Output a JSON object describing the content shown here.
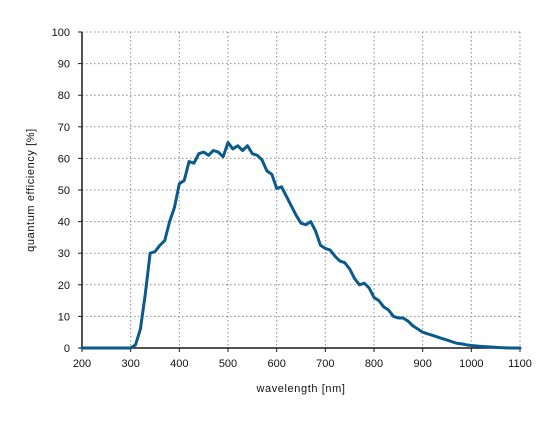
{
  "chart_data": {
    "type": "line",
    "title": "",
    "xlabel": "wavelength [nm]",
    "ylabel": "quantum efficiency [%]",
    "xlim": [
      200,
      1100
    ],
    "ylim": [
      0,
      100
    ],
    "xticks": [
      200,
      300,
      400,
      500,
      600,
      700,
      800,
      900,
      1000,
      1100
    ],
    "yticks": [
      0,
      10,
      20,
      30,
      40,
      50,
      60,
      70,
      80,
      90,
      100
    ],
    "grid": true,
    "legend": "none",
    "line_color": "#0b5a8c",
    "series": [
      {
        "x": [
          200,
          300,
          310,
          320,
          330,
          340,
          350,
          360,
          370,
          380,
          390,
          400,
          410,
          420,
          430,
          440,
          450,
          460,
          470,
          480,
          490,
          500,
          510,
          520,
          530,
          540,
          550,
          560,
          570,
          580,
          590,
          600,
          610,
          620,
          630,
          640,
          650,
          660,
          670,
          680,
          690,
          700,
          710,
          720,
          730,
          740,
          750,
          760,
          770,
          780,
          790,
          800,
          810,
          820,
          830,
          840,
          850,
          860,
          870,
          880,
          890,
          900,
          910,
          920,
          930,
          940,
          950,
          960,
          970,
          980,
          990,
          1000,
          1020,
          1040,
          1060,
          1080,
          1100
        ],
        "values": [
          0,
          0,
          1,
          6,
          17,
          30,
          30.5,
          32.5,
          34,
          40,
          44.5,
          52,
          53,
          59,
          58.5,
          61.5,
          62,
          61,
          62.5,
          62,
          60.5,
          65,
          63,
          64,
          62.5,
          64,
          61.5,
          61,
          59.5,
          56,
          55,
          50.5,
          51,
          48,
          45,
          42,
          39.5,
          39,
          40,
          37,
          32.5,
          31.5,
          31,
          29,
          27.5,
          27,
          25,
          22,
          20,
          20.5,
          19,
          16,
          15,
          13,
          12,
          10,
          9.5,
          9.5,
          8.5,
          7,
          6,
          5,
          4.5,
          4,
          3.5,
          3,
          2.5,
          2,
          1.5,
          1.3,
          1,
          0.8,
          0.5,
          0.3,
          0.1,
          0,
          0
        ]
      }
    ]
  }
}
